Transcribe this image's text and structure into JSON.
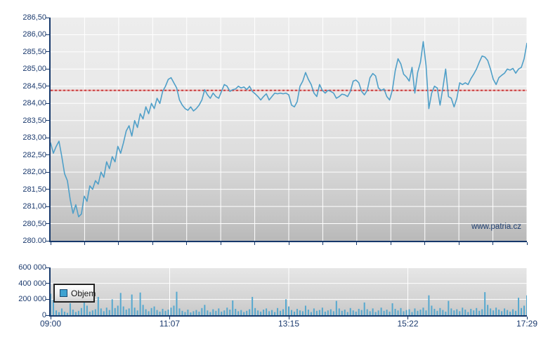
{
  "page": {
    "watermark": "www.patria.cz"
  },
  "colors": {
    "price_line": "#4f9fc8",
    "volume_bar": "#55a8cf",
    "reference_line": "#c84040",
    "reference_line_light": "#eeaaaa",
    "axis": "#16386b",
    "label_text": "#1b3a6e",
    "gridline": "#ffffff",
    "legend_swatch": "#3fa3d1"
  },
  "legend": {
    "label": "Objem"
  },
  "chart_data": [
    {
      "type": "line",
      "name": "price",
      "title": "",
      "xlabel": "",
      "ylabel": "",
      "ylim": [
        280.0,
        286.5
      ],
      "y_tick_labels": [
        "286,50",
        "286,00",
        "285,50",
        "285,00",
        "284,50",
        "284,00",
        "283,50",
        "283,00",
        "282,50",
        "282,00",
        "281,50",
        "281,00",
        "280,50",
        "280.00"
      ],
      "x_tick_labels": [
        "09:00",
        "11:07",
        "13:15",
        "15:22",
        "17:29"
      ],
      "x_gridline_divisions": 14,
      "grid": true,
      "reference_value": 284.38,
      "values": [
        282.85,
        282.55,
        282.75,
        282.9,
        282.45,
        281.95,
        281.75,
        281.2,
        280.8,
        281.05,
        280.7,
        280.78,
        281.3,
        281.15,
        281.6,
        281.5,
        281.75,
        281.65,
        282.0,
        281.85,
        282.3,
        282.1,
        282.45,
        282.3,
        282.75,
        282.55,
        282.85,
        283.2,
        283.35,
        283.05,
        283.5,
        283.3,
        283.7,
        283.55,
        283.9,
        283.7,
        284.0,
        283.85,
        284.15,
        284.0,
        284.35,
        284.5,
        284.7,
        284.75,
        284.6,
        284.45,
        284.1,
        283.95,
        283.85,
        283.8,
        283.9,
        283.78,
        283.85,
        283.95,
        284.1,
        284.4,
        284.25,
        284.15,
        284.3,
        284.2,
        284.15,
        284.35,
        284.55,
        284.5,
        284.35,
        284.4,
        284.42,
        284.5,
        284.45,
        284.48,
        284.4,
        284.5,
        284.35,
        284.28,
        284.2,
        284.1,
        284.2,
        284.28,
        284.1,
        284.2,
        284.3,
        284.28,
        284.3,
        284.28,
        284.3,
        284.25,
        283.95,
        283.9,
        284.05,
        284.5,
        284.65,
        284.9,
        284.7,
        284.55,
        284.3,
        284.2,
        284.55,
        284.38,
        284.3,
        284.38,
        284.35,
        284.3,
        284.15,
        284.2,
        284.27,
        284.25,
        284.2,
        284.35,
        284.65,
        284.68,
        284.6,
        284.35,
        284.25,
        284.38,
        284.75,
        284.87,
        284.8,
        284.45,
        284.38,
        284.42,
        284.2,
        284.1,
        284.4,
        284.95,
        285.3,
        285.15,
        284.85,
        284.77,
        284.65,
        285.05,
        284.3,
        284.9,
        285.2,
        285.8,
        285.1,
        283.85,
        284.3,
        284.5,
        284.45,
        283.95,
        284.45,
        285.0,
        284.2,
        284.15,
        283.9,
        284.15,
        284.6,
        284.55,
        284.6,
        284.55,
        284.72,
        284.85,
        285.0,
        285.2,
        285.38,
        285.35,
        285.25,
        285.0,
        284.7,
        284.55,
        284.75,
        284.82,
        284.88,
        285.0,
        284.97,
        285.02,
        284.88,
        285.0,
        285.05,
        285.3,
        285.75
      ]
    },
    {
      "type": "bar",
      "name": "Objem",
      "ylim": [
        0,
        600000
      ],
      "y_tick_labels": [
        "600 000",
        "400 000",
        "200 000",
        "0"
      ],
      "x_tick_labels": [
        "09:00",
        "11:07",
        "13:15",
        "15:22",
        "17:29"
      ],
      "grid": true,
      "values": [
        270000,
        195000,
        60000,
        38000,
        85000,
        45000,
        30000,
        150000,
        70000,
        40000,
        55000,
        90000,
        360000,
        120000,
        45000,
        60000,
        75000,
        230000,
        85000,
        50000,
        95000,
        65000,
        200000,
        90000,
        120000,
        280000,
        110000,
        70000,
        85000,
        260000,
        95000,
        60000,
        285000,
        130000,
        75000,
        50000,
        90000,
        110000,
        65000,
        45000,
        80000,
        55000,
        70000,
        95000,
        120000,
        295000,
        85000,
        55000,
        40000,
        70000,
        35000,
        50000,
        65000,
        45000,
        90000,
        130000,
        60000,
        40000,
        75000,
        55000,
        85000,
        45000,
        60000,
        95000,
        70000,
        185000,
        80000,
        50000,
        65000,
        40000,
        55000,
        75000,
        230000,
        90000,
        60000,
        45000,
        70000,
        85000,
        50000,
        65000,
        40000,
        90000,
        55000,
        75000,
        200000,
        110000,
        65000,
        45000,
        80000,
        60000,
        50000,
        120000,
        70000,
        40000,
        85000,
        55000,
        65000,
        95000,
        45000,
        60000,
        75000,
        50000,
        180000,
        85000,
        55000,
        70000,
        40000,
        90000,
        60000,
        45000,
        80000,
        65000,
        160000,
        75000,
        50000,
        85000,
        40000,
        60000,
        95000,
        55000,
        70000,
        45000,
        150000,
        80000,
        60000,
        90000,
        50000,
        65000,
        75000,
        40000,
        85000,
        55000,
        70000,
        95000,
        60000,
        250000,
        120000,
        80000,
        55000,
        90000,
        65000,
        45000,
        180000,
        85000,
        60000,
        75000,
        50000,
        95000,
        70000,
        40000,
        80000,
        60000,
        90000,
        55000,
        75000,
        290000,
        130000,
        85000,
        60000,
        95000,
        70000,
        50000,
        85000,
        65000,
        45000,
        75000,
        55000,
        220000,
        90000,
        120000,
        250000
      ]
    }
  ]
}
